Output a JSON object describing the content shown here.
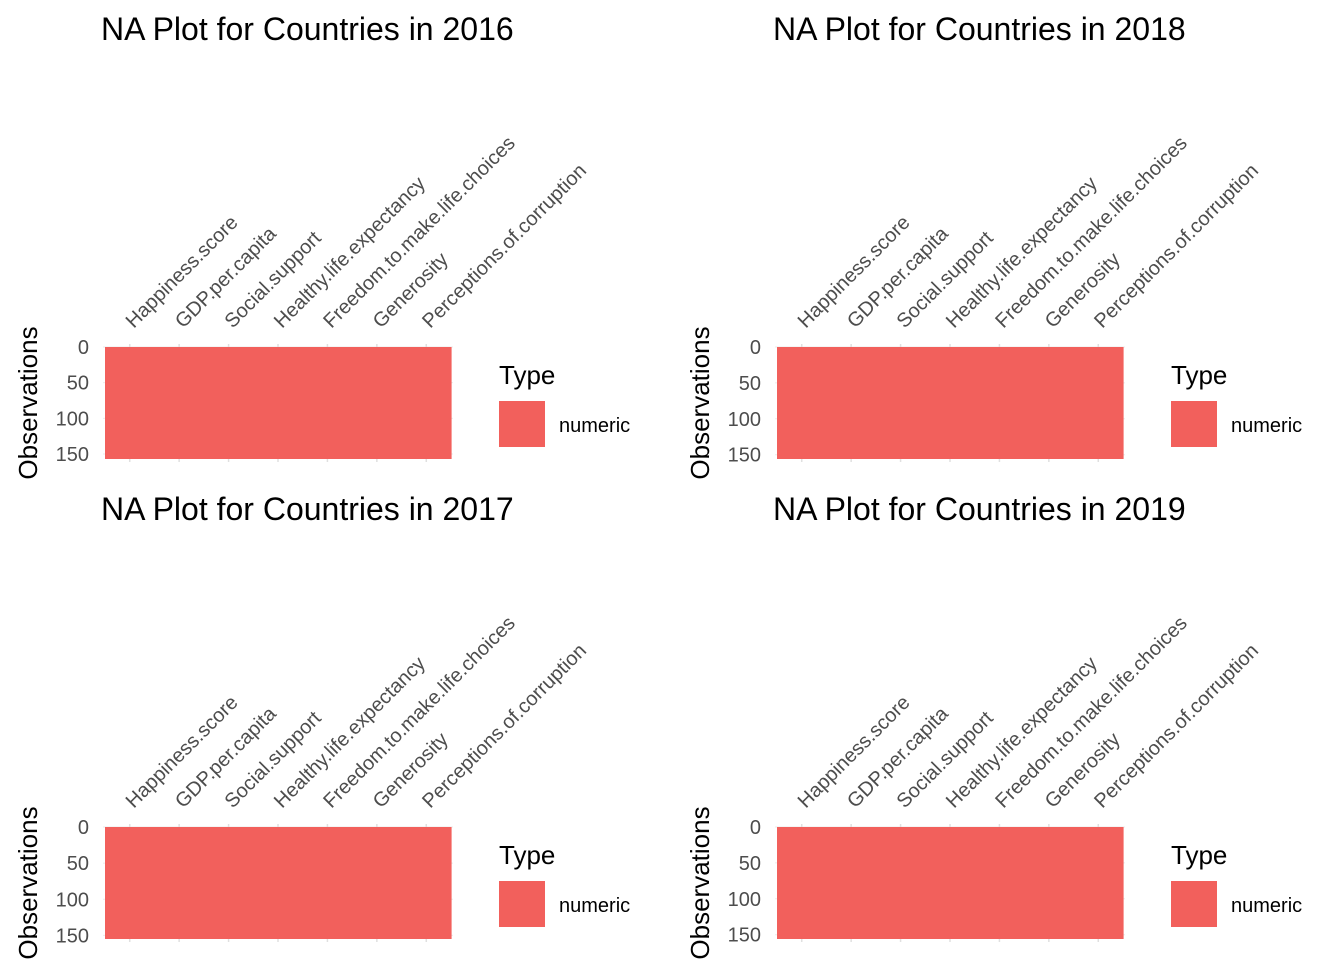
{
  "chart_data": [
    {
      "type": "heatmap",
      "title": "NA Plot for Countries in 2016",
      "xlabel": "",
      "ylabel": "Observations",
      "categories": [
        "Happiness.score",
        "GDP.per.capita",
        "Social.support",
        "Healthy.life.expectancy",
        "Freedom.to.make.life.choices",
        "Generosity",
        "Perceptions.of.corruption"
      ],
      "yticks": [
        0,
        50,
        100,
        150
      ],
      "ylim": [
        0,
        157
      ],
      "y_reversed": true,
      "legend_title": "Type",
      "legend_position": "right",
      "series": [
        {
          "name": "numeric",
          "color": "#F2605C",
          "values": [
            157,
            157,
            157,
            157,
            157,
            157,
            157
          ]
        }
      ]
    },
    {
      "type": "heatmap",
      "title": "NA Plot for Countries in 2018",
      "xlabel": "",
      "ylabel": "Observations",
      "categories": [
        "Happiness.score",
        "GDP.per.capita",
        "Social.support",
        "Healthy.life.expectancy",
        "Freedom.to.make.life.choices",
        "Generosity",
        "Perceptions.of.corruption"
      ],
      "yticks": [
        0,
        50,
        100,
        150
      ],
      "ylim": [
        0,
        156
      ],
      "y_reversed": true,
      "legend_title": "Type",
      "legend_position": "right",
      "series": [
        {
          "name": "numeric",
          "color": "#F2605C",
          "values": [
            156,
            156,
            156,
            156,
            156,
            156,
            156
          ]
        }
      ]
    },
    {
      "type": "heatmap",
      "title": "NA Plot for Countries in 2017",
      "xlabel": "",
      "ylabel": "Observations",
      "categories": [
        "Happiness.score",
        "GDP.per.capita",
        "Social.support",
        "Healthy.life.expectancy",
        "Freedom.to.make.life.choices",
        "Generosity",
        "Perceptions.of.corruption"
      ],
      "yticks": [
        0,
        50,
        100,
        150
      ],
      "ylim": [
        0,
        155
      ],
      "y_reversed": true,
      "legend_title": "Type",
      "legend_position": "right",
      "series": [
        {
          "name": "numeric",
          "color": "#F2605C",
          "values": [
            155,
            155,
            155,
            155,
            155,
            155,
            155
          ]
        }
      ]
    },
    {
      "type": "heatmap",
      "title": "NA Plot for Countries in 2019",
      "xlabel": "",
      "ylabel": "Observations",
      "categories": [
        "Happiness.score",
        "GDP.per.capita",
        "Social.support",
        "Healthy.life.expectancy",
        "Freedom.to.make.life.choices",
        "Generosity",
        "Perceptions.of.corruption"
      ],
      "yticks": [
        0,
        50,
        100,
        150
      ],
      "ylim": [
        0,
        156
      ],
      "y_reversed": true,
      "legend_title": "Type",
      "legend_position": "right",
      "series": [
        {
          "name": "numeric",
          "color": "#F2605C",
          "values": [
            156,
            156,
            156,
            156,
            156,
            156,
            156
          ]
        }
      ]
    }
  ]
}
